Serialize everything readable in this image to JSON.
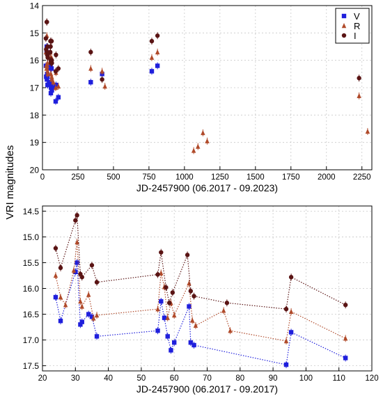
{
  "figure": {
    "ylabel": "VRI magnitudes"
  },
  "chart_data": [
    {
      "type": "scatter",
      "xlabel": "JD-2457900 (06.2017 - 09.2023)",
      "ylabel": "VRI magnitudes",
      "xlim": [
        0,
        2320
      ],
      "ylim": [
        20,
        14
      ],
      "y_inverted": true,
      "grid": true,
      "legend_position": "top-right",
      "x_ticks": [
        0,
        250,
        500,
        750,
        1000,
        1250,
        1500,
        1750,
        2000,
        2250
      ],
      "y_ticks": [
        14,
        15,
        16,
        17,
        18,
        19,
        20
      ],
      "series": [
        {
          "name": "V",
          "color": "#1f1fdc",
          "marker": "square",
          "x": [
            24,
            26,
            29,
            30,
            31,
            33,
            35,
            36,
            37,
            55,
            56,
            57,
            58,
            59,
            60,
            64,
            65,
            66,
            76,
            93,
            95,
            112,
            340,
            420,
            770,
            810
          ],
          "y": [
            16.2,
            16.6,
            15.7,
            15.5,
            16.7,
            16.5,
            16.6,
            16.9,
            16.9,
            16.8,
            16.3,
            16.2,
            16.9,
            17.2,
            17.0,
            16.3,
            17.0,
            17.1,
            17.0,
            17.5,
            16.9,
            17.35,
            16.8,
            16.5,
            16.4,
            16.2
          ]
        },
        {
          "name": "R",
          "color": "#b04a2a",
          "marker": "triangle",
          "x": [
            24,
            26,
            28,
            30,
            31,
            32,
            33,
            35,
            36,
            37,
            55,
            56,
            57,
            58,
            60,
            64,
            65,
            66,
            77,
            93,
            95,
            112,
            340,
            420,
            440,
            770,
            810,
            1065,
            1095,
            1130,
            1160,
            2230,
            2290
          ],
          "y": [
            15.7,
            16.2,
            16.3,
            15.6,
            15.1,
            16.3,
            16.2,
            16.1,
            16.4,
            16.5,
            15.7,
            15.9,
            16.0,
            16.5,
            16.5,
            15.9,
            16.6,
            16.7,
            16.8,
            17.0,
            16.45,
            16.95,
            16.3,
            16.4,
            16.95,
            15.9,
            15.7,
            19.3,
            19.15,
            18.65,
            18.95,
            17.3,
            18.6
          ]
        },
        {
          "name": "I",
          "color": "#5a1414",
          "marker": "circle",
          "x": [
            24,
            26,
            30,
            31,
            32,
            33,
            35,
            36,
            37,
            55,
            56,
            57,
            58,
            59,
            60,
            64,
            65,
            66,
            93,
            95,
            112,
            340,
            420,
            770,
            810,
            2230
          ],
          "y": [
            15.2,
            15.6,
            14.6,
            14.6,
            15.7,
            15.8,
            15.5,
            15.8,
            15.9,
            15.7,
            15.3,
            15.5,
            16.0,
            16.0,
            16.1,
            15.3,
            16.0,
            16.1,
            16.4,
            15.8,
            16.3,
            15.7,
            16.7,
            15.3,
            15.1,
            16.65
          ]
        }
      ]
    },
    {
      "type": "line",
      "xlabel": "JD-2457900 (06.2017 - 09.2017)",
      "ylabel": "VRI magnitudes",
      "xlim": [
        20,
        120
      ],
      "ylim": [
        17.6,
        14.4
      ],
      "y_inverted": true,
      "grid": true,
      "line_style": "dotted",
      "x_ticks": [
        20,
        30,
        40,
        50,
        60,
        70,
        80,
        90,
        100,
        110,
        120
      ],
      "y_ticks": [
        14.5,
        15.0,
        15.5,
        16.0,
        16.5,
        17.0,
        17.5
      ],
      "series": [
        {
          "name": "V",
          "color": "#1f1fdc",
          "marker": "square",
          "x": [
            24,
            25.5,
            30,
            30.5,
            31.5,
            32,
            34,
            35,
            36.5,
            55,
            56,
            57,
            58,
            59,
            60,
            64.5,
            65,
            66,
            94,
            95.5,
            112
          ],
          "y": [
            16.17,
            16.63,
            15.68,
            15.5,
            16.7,
            16.65,
            16.5,
            16.55,
            16.93,
            16.82,
            16.25,
            16.57,
            16.93,
            17.2,
            17.05,
            16.35,
            17.05,
            17.1,
            17.48,
            16.85,
            17.35
          ]
        },
        {
          "name": "R",
          "color": "#b04a2a",
          "marker": "triangle",
          "x": [
            24,
            25.5,
            27,
            29.5,
            30.5,
            31.5,
            32,
            34,
            35.5,
            36.5,
            55,
            56,
            57,
            58,
            59,
            60,
            64.5,
            65.5,
            66.5,
            75,
            77,
            94,
            95.5,
            112
          ],
          "y": [
            15.75,
            16.17,
            16.32,
            15.65,
            15.1,
            16.25,
            16.35,
            16.12,
            16.58,
            16.52,
            16.4,
            15.7,
            15.97,
            16.57,
            16.28,
            16.52,
            15.9,
            16.62,
            16.72,
            16.43,
            16.82,
            17.02,
            16.45,
            16.97
          ]
        },
        {
          "name": "I",
          "color": "#5a1414",
          "marker": "circle",
          "x": [
            24,
            25.5,
            30,
            30.5,
            31.5,
            32,
            35,
            36.5,
            55,
            56,
            57.5,
            58.5,
            59.5,
            64,
            65,
            66,
            76,
            94,
            95.5,
            112
          ],
          "y": [
            15.22,
            15.6,
            14.68,
            14.58,
            15.72,
            15.78,
            15.55,
            15.88,
            15.73,
            15.3,
            15.98,
            16.28,
            16.08,
            15.35,
            16.05,
            16.15,
            16.28,
            16.4,
            15.78,
            16.32
          ]
        }
      ]
    }
  ]
}
